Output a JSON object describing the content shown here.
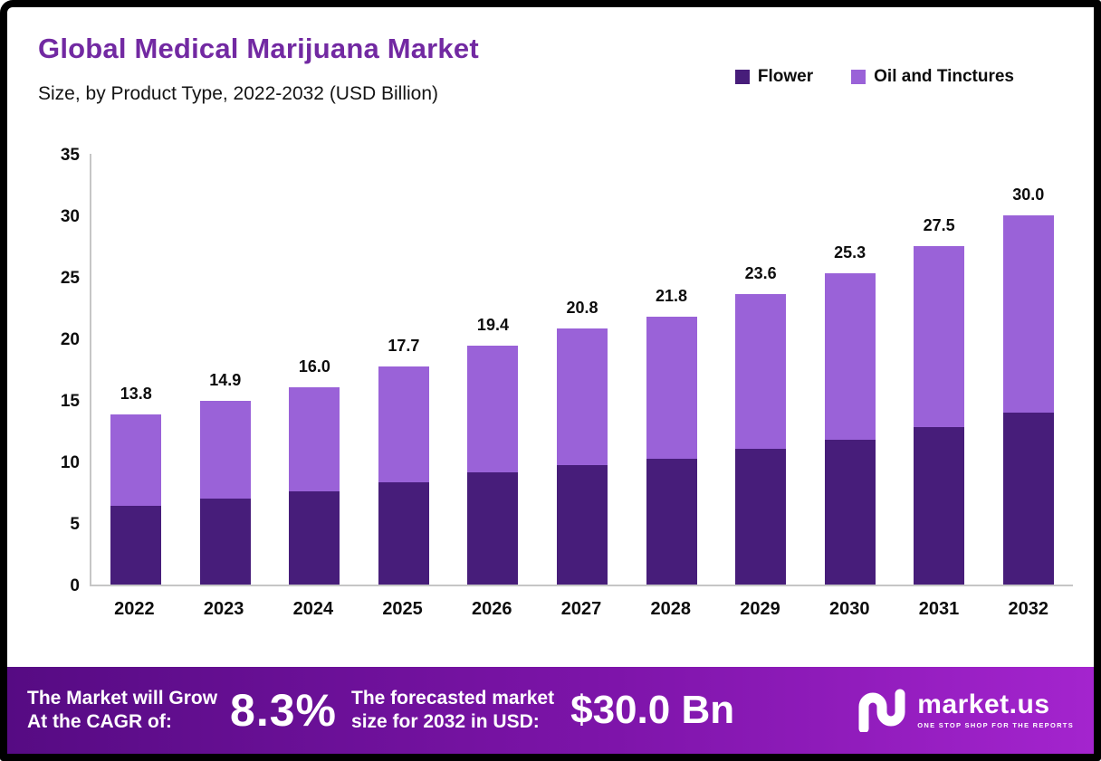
{
  "header": {
    "title": "Global Medical Marijuana Market",
    "subtitle": "Size, by Product Type, 2022-2032 (USD Billion)"
  },
  "legend": [
    {
      "label": "Flower",
      "color": "#471d7a"
    },
    {
      "label": "Oil and Tinctures",
      "color": "#9a62d8"
    }
  ],
  "chart_data": {
    "type": "bar",
    "stacked": true,
    "title": "Global Medical Marijuana Market Size, by Product Type, 2022-2032 (USD Billion)",
    "categories": [
      "2022",
      "2023",
      "2024",
      "2025",
      "2026",
      "2027",
      "2028",
      "2029",
      "2030",
      "2031",
      "2032"
    ],
    "series": [
      {
        "name": "Flower",
        "color": "#471d7a",
        "values": [
          6.4,
          7.0,
          7.6,
          8.3,
          9.1,
          9.7,
          10.2,
          11.0,
          11.8,
          12.8,
          14.0
        ]
      },
      {
        "name": "Oil and Tinctures",
        "color": "#9a62d8",
        "values": [
          7.4,
          7.9,
          8.4,
          9.4,
          10.3,
          11.1,
          11.6,
          12.6,
          13.5,
          14.7,
          16.0
        ]
      }
    ],
    "totals": [
      13.8,
      14.9,
      16.0,
      17.7,
      19.4,
      20.8,
      21.8,
      23.6,
      25.3,
      27.5,
      30.0
    ],
    "total_labels": [
      "13.8",
      "14.9",
      "16.0",
      "17.7",
      "19.4",
      "20.8",
      "21.8",
      "23.6",
      "25.3",
      "27.5",
      "30.0"
    ],
    "xlabel": "",
    "ylabel": "",
    "ylim": [
      0,
      35
    ],
    "yticks": [
      0,
      5,
      10,
      15,
      20,
      25,
      30,
      35
    ],
    "grid": false,
    "legend_position": "top-right"
  },
  "footer": {
    "cagr_label": "The Market will Grow\nAt the CAGR of:",
    "cagr_value": "8.3%",
    "forecast_label": "The forecasted market\nsize for 2032 in USD:",
    "forecast_value": "$30.0 Bn",
    "brand": "market.us",
    "brand_tagline": "ONE STOP SHOP FOR THE REPORTS"
  }
}
